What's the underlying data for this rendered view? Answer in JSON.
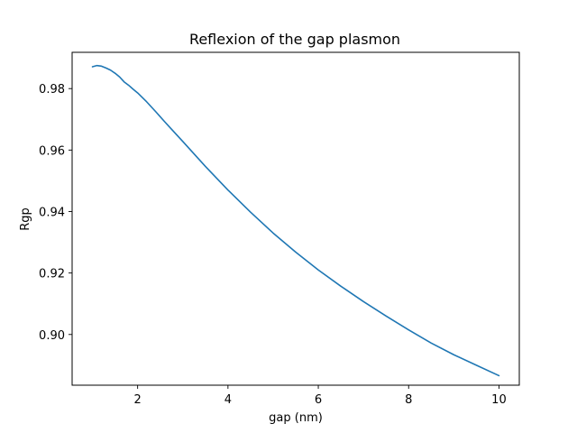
{
  "chart_data": {
    "type": "line",
    "title": "Reflexion of the gap plasmon",
    "xlabel": "gap (nm)",
    "ylabel": "Rgp",
    "xlim": [
      0.55,
      10.45
    ],
    "ylim": [
      0.8835,
      0.9918
    ],
    "xticks": [
      2,
      4,
      6,
      8,
      10
    ],
    "xtick_labels": [
      "2",
      "4",
      "6",
      "8",
      "10"
    ],
    "yticks": [
      0.9,
      0.92,
      0.94,
      0.96,
      0.98
    ],
    "ytick_labels": [
      "0.90",
      "0.92",
      "0.94",
      "0.96",
      "0.98"
    ],
    "grid": false,
    "legend": false,
    "series": [
      {
        "color": "#1f77b4",
        "x": [
          1.0,
          1.1,
          1.2,
          1.3,
          1.4,
          1.5,
          1.6,
          1.7,
          1.8,
          1.9,
          2.0,
          2.2,
          2.4,
          2.6,
          2.8,
          3.0,
          3.5,
          4.0,
          4.5,
          5.0,
          5.5,
          6.0,
          6.5,
          7.0,
          7.5,
          8.0,
          8.5,
          9.0,
          9.5,
          10.0
        ],
        "y": [
          0.9871,
          0.9875,
          0.9873,
          0.9867,
          0.986,
          0.985,
          0.9838,
          0.9822,
          0.9811,
          0.9798,
          0.9786,
          0.9757,
          0.9725,
          0.9692,
          0.966,
          0.9628,
          0.9547,
          0.947,
          0.9398,
          0.933,
          0.9268,
          0.921,
          0.9157,
          0.9107,
          0.906,
          0.9015,
          0.8972,
          0.8934,
          0.89,
          0.8866
        ]
      }
    ]
  }
}
